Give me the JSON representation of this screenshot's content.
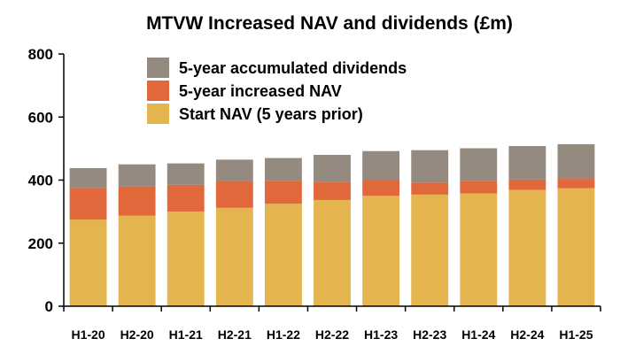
{
  "chart_data": {
    "type": "bar",
    "stacked": true,
    "title": "MTVW Increased NAV and dividends (£m)",
    "categories": [
      "H1-20",
      "H2-20",
      "H1-21",
      "H2-21",
      "H1-22",
      "H2-22",
      "H1-23",
      "H2-23",
      "H1-24",
      "H2-24",
      "H1-25"
    ],
    "series": [
      {
        "name": "Start NAV (5 years prior)",
        "color": "#E4B44E",
        "values": [
          275,
          287,
          300,
          312,
          325,
          337,
          350,
          354,
          358,
          369,
          374
        ]
      },
      {
        "name": "5-year increased NAV",
        "color": "#E0683A",
        "values": [
          100,
          93,
          85,
          85,
          73,
          57,
          50,
          38,
          40,
          33,
          30
        ]
      },
      {
        "name": "5-year accumulated dividends",
        "color": "#948A80",
        "values": [
          63,
          70,
          68,
          68,
          72,
          86,
          92,
          103,
          103,
          106,
          110
        ]
      }
    ],
    "legend_order": [
      "5-year accumulated dividends",
      "5-year increased NAV",
      "Start NAV (5 years prior)"
    ],
    "legend_position": "top-center",
    "ylim": [
      0,
      800
    ],
    "yticks": [
      "0",
      "200",
      "400",
      "600",
      "800"
    ],
    "xlabel": "",
    "ylabel": "",
    "grid": false
  }
}
